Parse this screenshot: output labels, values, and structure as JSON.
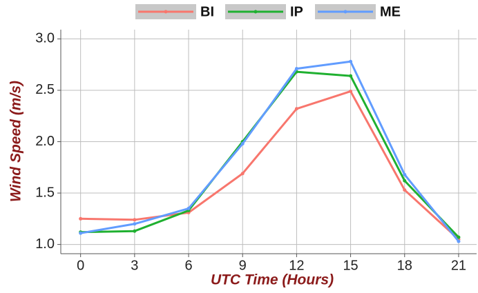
{
  "chart_data": {
    "type": "line",
    "x_label": "UTC Time (Hours)",
    "y_label": "Wind Speed (m/s)",
    "x": [
      0,
      3,
      6,
      9,
      12,
      15,
      18,
      21
    ],
    "series": [
      {
        "name": "BI",
        "color": "#f8766d",
        "values": [
          1.25,
          1.24,
          1.31,
          1.69,
          2.32,
          2.49,
          1.53,
          1.05
        ]
      },
      {
        "name": "IP",
        "color": "#1fb030",
        "values": [
          1.12,
          1.13,
          1.33,
          2.0,
          2.68,
          2.64,
          1.62,
          1.07
        ]
      },
      {
        "name": "ME",
        "color": "#619cff",
        "values": [
          1.11,
          1.2,
          1.35,
          1.98,
          2.71,
          2.78,
          1.68,
          1.03
        ]
      }
    ],
    "xlim": [
      -1.1,
      22.0
    ],
    "xticks": [
      0,
      3,
      6,
      9,
      12,
      15,
      18,
      21
    ],
    "ylim": [
      0.91,
      3.09
    ],
    "yticks": [
      {
        "value": 1,
        "label": "1.0"
      },
      1.5,
      {
        "value": 2,
        "label": "2.0"
      },
      2.5,
      {
        "value": 3,
        "label": "3.0"
      }
    ],
    "grid": true,
    "legend": "top"
  }
}
